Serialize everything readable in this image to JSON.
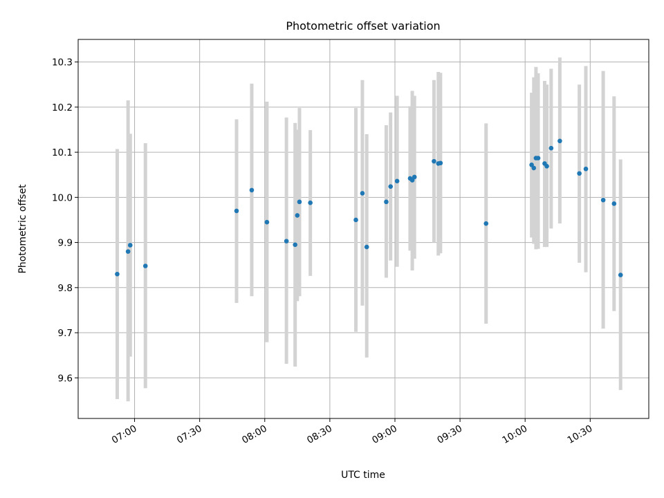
{
  "chart_data": {
    "type": "scatter",
    "title": "Photometric offset variation",
    "xlabel": "UTC time",
    "ylabel": "Photometric offset",
    "x_axis_type": "time",
    "xlim": [
      "06:34",
      "10:57"
    ],
    "ylim": [
      9.51,
      10.35
    ],
    "grid": true,
    "x_ticks": [
      "07:00",
      "07:30",
      "08:00",
      "08:30",
      "09:00",
      "09:30",
      "10:00",
      "10:30"
    ],
    "y_ticks": [
      "9.6",
      "9.7",
      "9.8",
      "9.9",
      "10.0",
      "10.1",
      "10.2",
      "10.3"
    ],
    "marker_color": "#1f77b4",
    "errorbar_color": "#d3d3d3",
    "points": [
      {
        "time": "06:52",
        "y": 9.83,
        "err_low": 9.553,
        "err_high": 10.107
      },
      {
        "time": "06:57",
        "y": 9.88,
        "err_low": 9.548,
        "err_high": 10.215
      },
      {
        "time": "06:58",
        "y": 9.894,
        "err_low": 9.647,
        "err_high": 10.141
      },
      {
        "time": "07:05",
        "y": 9.848,
        "err_low": 9.577,
        "err_high": 10.12
      },
      {
        "time": "07:47",
        "y": 9.97,
        "err_low": 9.766,
        "err_high": 10.173
      },
      {
        "time": "07:54",
        "y": 10.016,
        "err_low": 9.781,
        "err_high": 10.252
      },
      {
        "time": "08:01",
        "y": 9.945,
        "err_low": 9.679,
        "err_high": 10.212
      },
      {
        "time": "08:10",
        "y": 9.903,
        "err_low": 9.631,
        "err_high": 10.177
      },
      {
        "time": "08:14",
        "y": 9.895,
        "err_low": 9.625,
        "err_high": 10.165
      },
      {
        "time": "08:15",
        "y": 9.96,
        "err_low": 9.77,
        "err_high": 10.15
      },
      {
        "time": "08:16",
        "y": 9.99,
        "err_low": 9.781,
        "err_high": 10.198
      },
      {
        "time": "08:21",
        "y": 9.988,
        "err_low": 9.826,
        "err_high": 10.149
      },
      {
        "time": "08:42",
        "y": 9.95,
        "err_low": 9.702,
        "err_high": 10.198
      },
      {
        "time": "08:45",
        "y": 10.009,
        "err_low": 9.76,
        "err_high": 10.26
      },
      {
        "time": "08:47",
        "y": 9.89,
        "err_low": 9.645,
        "err_high": 10.14
      },
      {
        "time": "08:56",
        "y": 9.99,
        "err_low": 9.822,
        "err_high": 10.16
      },
      {
        "time": "08:58",
        "y": 10.024,
        "err_low": 9.86,
        "err_high": 10.188
      },
      {
        "time": "09:01",
        "y": 10.036,
        "err_low": 9.846,
        "err_high": 10.225
      },
      {
        "time": "09:07",
        "y": 10.042,
        "err_low": 9.882,
        "err_high": 10.202
      },
      {
        "time": "09:08",
        "y": 10.038,
        "err_low": 9.838,
        "err_high": 10.236
      },
      {
        "time": "09:09",
        "y": 10.045,
        "err_low": 9.864,
        "err_high": 10.225
      },
      {
        "time": "09:18",
        "y": 10.08,
        "err_low": 9.9,
        "err_high": 10.26
      },
      {
        "time": "09:20",
        "y": 10.075,
        "err_low": 9.871,
        "err_high": 10.278
      },
      {
        "time": "09:21",
        "y": 10.076,
        "err_low": 9.876,
        "err_high": 10.276
      },
      {
        "time": "09:42",
        "y": 9.942,
        "err_low": 9.72,
        "err_high": 10.164
      },
      {
        "time": "10:03",
        "y": 10.072,
        "err_low": 9.911,
        "err_high": 10.232
      },
      {
        "time": "10:04",
        "y": 10.065,
        "err_low": 9.897,
        "err_high": 10.266
      },
      {
        "time": "10:05",
        "y": 10.087,
        "err_low": 9.885,
        "err_high": 10.289
      },
      {
        "time": "10:06",
        "y": 10.087,
        "err_low": 9.886,
        "err_high": 10.275
      },
      {
        "time": "10:09",
        "y": 10.075,
        "err_low": 9.89,
        "err_high": 10.258
      },
      {
        "time": "10:10",
        "y": 10.069,
        "err_low": 9.89,
        "err_high": 10.25
      },
      {
        "time": "10:12",
        "y": 10.109,
        "err_low": 9.931,
        "err_high": 10.285
      },
      {
        "time": "10:16",
        "y": 10.125,
        "err_low": 9.942,
        "err_high": 10.31
      },
      {
        "time": "10:25",
        "y": 10.053,
        "err_low": 9.855,
        "err_high": 10.25
      },
      {
        "time": "10:28",
        "y": 10.063,
        "err_low": 9.834,
        "err_high": 10.291
      },
      {
        "time": "10:36",
        "y": 9.994,
        "err_low": 9.709,
        "err_high": 10.28
      },
      {
        "time": "10:41",
        "y": 9.986,
        "err_low": 9.748,
        "err_high": 10.224
      },
      {
        "time": "10:44",
        "y": 9.828,
        "err_low": 9.573,
        "err_high": 10.084
      }
    ]
  }
}
